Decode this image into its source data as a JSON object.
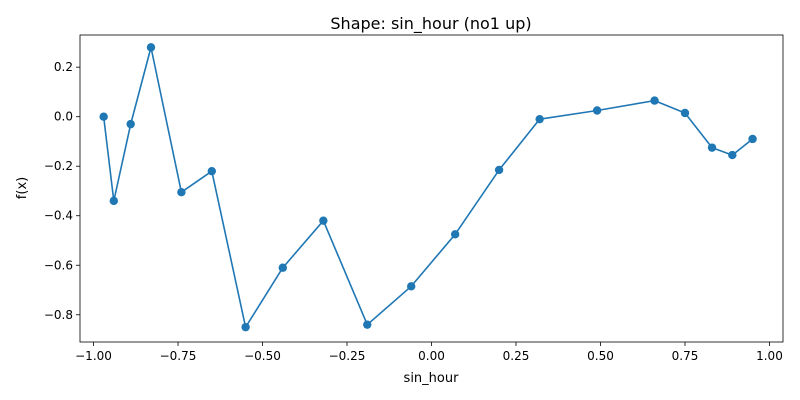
{
  "chart_data": {
    "type": "line",
    "title": "Shape: sin_hour (no1 up)",
    "xlabel": "sin_hour",
    "ylabel": "f(x)",
    "xlim": [
      -1.04,
      1.04
    ],
    "ylim": [
      -0.91,
      0.33
    ],
    "x_ticks": [
      -1.0,
      -0.75,
      -0.5,
      -0.25,
      0.0,
      0.25,
      0.5,
      0.75,
      1.0
    ],
    "x_tick_labels": [
      "−1.00",
      "−0.75",
      "−0.50",
      "−0.25",
      "0.00",
      "0.25",
      "0.50",
      "0.75",
      "1.00"
    ],
    "y_ticks": [
      -0.8,
      -0.6,
      -0.4,
      -0.2,
      0.0,
      0.2
    ],
    "y_tick_labels": [
      "−0.8",
      "−0.6",
      "−0.4",
      "−0.2",
      "0.0",
      "0.2"
    ],
    "grid": false,
    "series": [
      {
        "color": "#1f77b4",
        "marker": "circle",
        "x": [
          -0.97,
          -0.94,
          -0.89,
          -0.83,
          -0.74,
          -0.65,
          -0.55,
          -0.44,
          -0.32,
          -0.19,
          -0.06,
          0.07,
          0.2,
          0.32,
          0.49,
          0.66,
          0.75,
          0.83,
          0.89,
          0.95
        ],
        "y": [
          0.0,
          -0.34,
          -0.03,
          0.28,
          -0.305,
          -0.22,
          -0.85,
          -0.61,
          -0.42,
          -0.84,
          -0.685,
          -0.475,
          -0.215,
          -0.01,
          0.025,
          0.065,
          0.015,
          -0.125,
          -0.155,
          -0.09
        ]
      }
    ]
  }
}
